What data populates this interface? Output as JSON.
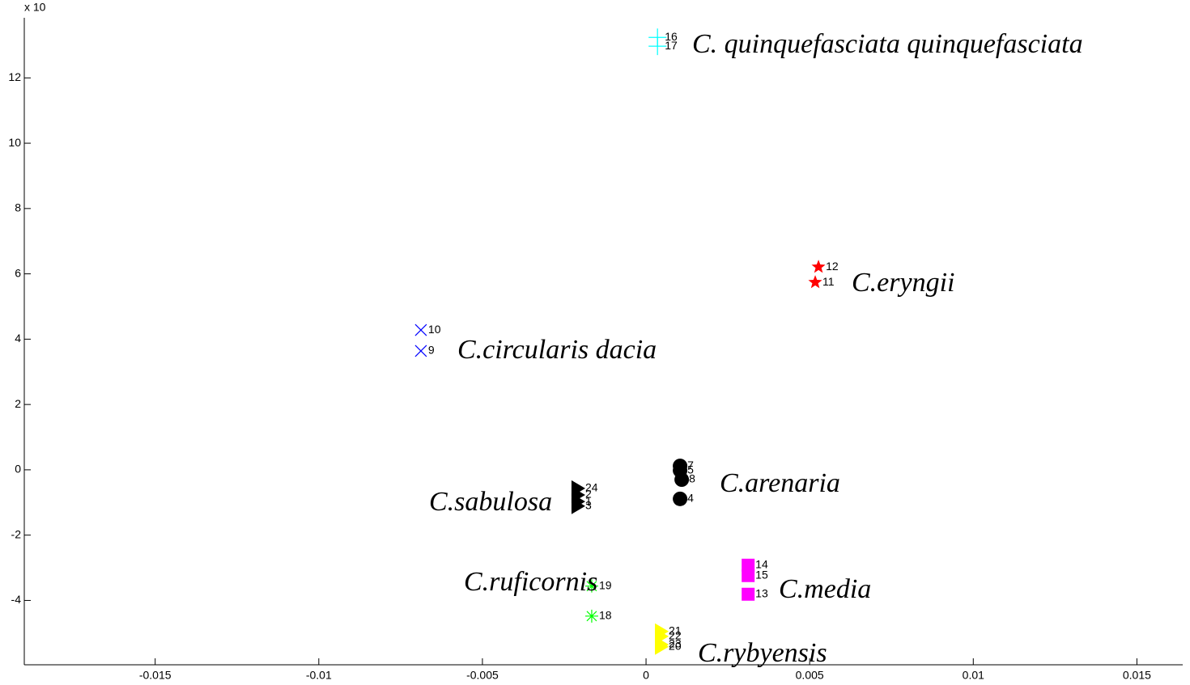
{
  "chart_data": {
    "type": "scatter",
    "exponent_label": "x 10",
    "xlim": [
      -0.019,
      0.0164
    ],
    "ylim": [
      -5.97,
      13.84
    ],
    "xticks": [
      -0.015,
      -0.01,
      -0.005,
      0,
      0.005,
      0.01,
      0.015
    ],
    "yticks": [
      -4,
      -2,
      0,
      2,
      4,
      6,
      8,
      10,
      12
    ],
    "series": [
      {
        "marker": "plus",
        "color": "#00ffff",
        "x": [
          0.00035,
          0.00035
        ],
        "y": [
          13.24,
          12.97
        ],
        "labels": [
          "16",
          "17"
        ]
      },
      {
        "marker": "star",
        "color": "#ff0000",
        "x": [
          0.00527,
          0.00517
        ],
        "y": [
          6.21,
          5.74
        ],
        "labels": [
          "12",
          "11"
        ]
      },
      {
        "marker": "cross",
        "color": "#0000ff",
        "x": [
          -0.00688,
          -0.00688
        ],
        "y": [
          4.28,
          3.64
        ],
        "labels": [
          "10",
          "9"
        ]
      },
      {
        "marker": "circle",
        "color": "#000000",
        "x": [
          0.00104,
          0.00104,
          0.00109,
          0.00104
        ],
        "y": [
          0.12,
          -0.02,
          -0.3,
          -0.89
        ],
        "labels": [
          "7",
          "5",
          "8",
          "4"
        ]
      },
      {
        "marker": "triangle",
        "color": "#000000",
        "x": [
          -0.00208,
          -0.00208,
          -0.00208,
          -0.00208
        ],
        "y": [
          -0.57,
          -0.77,
          -0.97,
          -1.11
        ],
        "labels": [
          "24",
          "2",
          "1",
          "3"
        ]
      },
      {
        "marker": "square",
        "color": "#ff00ff",
        "x": [
          0.00312,
          0.00312,
          0.00312
        ],
        "y": [
          -2.92,
          -3.24,
          -3.81
        ],
        "labels": [
          "14",
          "15",
          "13"
        ]
      },
      {
        "marker": "asterisk",
        "color": "#00ff00",
        "x": [
          -0.00166,
          -0.00166
        ],
        "y": [
          -3.56,
          -4.48
        ],
        "labels": [
          "19",
          "18"
        ]
      },
      {
        "marker": "triangle",
        "color": "#ffff00",
        "x": [
          0.00047,
          0.00047,
          0.00047,
          0.00047
        ],
        "y": [
          -4.95,
          -5.1,
          -5.35,
          -5.42
        ],
        "labels": [
          "21",
          "22",
          "23",
          "20"
        ]
      }
    ],
    "annotations": [
      "C. quinquefasciata quinquefasciata",
      "C.eryngii",
      "C.circularis dacia",
      "C.arenaria",
      "C.sabulosa",
      "C.ruficornis",
      "C.media",
      "C.rybyensis"
    ]
  }
}
